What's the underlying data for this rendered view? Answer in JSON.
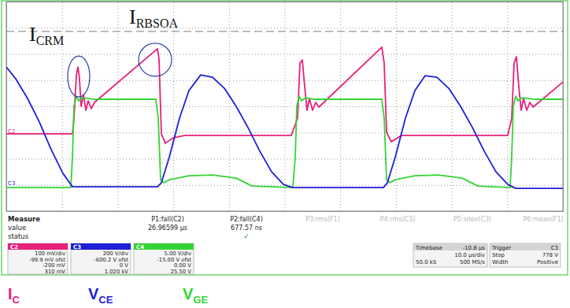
{
  "chart_data": {
    "type": "line",
    "xlim": [
      0,
      100
    ],
    "xticks": [
      0,
      10,
      20,
      30,
      40,
      50,
      60,
      70,
      80,
      90,
      100
    ],
    "ylim": [
      0,
      8
    ],
    "yticks": [
      0,
      1,
      2,
      3,
      4,
      5,
      6,
      7,
      8
    ],
    "grid": true,
    "tick_labels": false,
    "series": [
      {
        "name": "IC",
        "color": "#e8207a",
        "x": [
          0,
          11.88,
          12.16,
          12.59,
          12.87,
          13.15,
          13.44,
          13.86,
          14.29,
          14.71,
          15.28,
          15.84,
          27.16,
          27.44,
          27.86,
          28.57,
          29.99,
          32.11,
          51.2,
          52.33,
          52.76,
          53.18,
          53.61,
          54.03,
          54.46,
          55.02,
          55.59,
          56.15,
          67.47,
          67.89,
          68.32,
          69.16,
          71.0,
          90.1,
          90.8,
          91.23,
          91.65,
          92.08,
          92.5,
          92.93,
          93.5,
          94.06,
          94.63,
          100
        ],
        "values": [
          2.95,
          2.95,
          3.55,
          5.2,
          5.5,
          5.05,
          4.0,
          4.45,
          3.85,
          4.21,
          3.91,
          4.15,
          6.2,
          5.8,
          2.95,
          2.59,
          2.8,
          2.89,
          2.89,
          3.55,
          5.65,
          5.77,
          4.75,
          3.85,
          4.3,
          3.85,
          4.15,
          3.97,
          6.26,
          5.65,
          3.01,
          2.65,
          2.89,
          2.89,
          3.55,
          5.65,
          5.89,
          4.75,
          3.85,
          4.3,
          3.85,
          4.15,
          3.97,
          4.93
        ]
      },
      {
        "name": "VGE",
        "color": "#35d435",
        "x": [
          0,
          11.6,
          11.88,
          12.16,
          12.59,
          13.01,
          13.72,
          15.84,
          26.87,
          27.3,
          27.72,
          28.29,
          29.28,
          32.81,
          37.06,
          41.3,
          44.13,
          51.48,
          51.91,
          52.19,
          52.62,
          53.04,
          53.75,
          55.44,
          67.47,
          67.89,
          68.32,
          68.88,
          69.87,
          73.41,
          77.65,
          81.89,
          84.72,
          90.52,
          90.8,
          91.09,
          91.51,
          91.94,
          92.64,
          95.05,
          100
        ],
        "values": [
          0.9,
          0.9,
          2.05,
          4.0,
          4.39,
          4.21,
          4.33,
          4.27,
          4.27,
          3.55,
          1.2,
          1.08,
          1.2,
          1.35,
          1.38,
          1.26,
          0.96,
          0.9,
          2.05,
          4.0,
          4.39,
          4.21,
          4.33,
          4.27,
          4.27,
          3.55,
          1.2,
          1.08,
          1.2,
          1.35,
          1.38,
          1.26,
          0.96,
          0.9,
          2.05,
          4.0,
          4.39,
          4.21,
          4.33,
          4.27,
          4.27
        ]
      },
      {
        "name": "VCE",
        "color": "#1f1fd6",
        "x": [
          0,
          1.7,
          3.82,
          5.94,
          8.06,
          10.18,
          11.88,
          27.16,
          27.86,
          29.27,
          31.12,
          32.81,
          34.93,
          37.06,
          39.18,
          41.3,
          43.42,
          45.54,
          47.67,
          49.79,
          51.48,
          67.75,
          68.46,
          69.87,
          71.71,
          73.41,
          75.25,
          77.37,
          79.49,
          81.61,
          83.74,
          85.86,
          87.98,
          90.1,
          91.51,
          100
        ],
        "values": [
          5.5,
          5.05,
          4.3,
          3.4,
          2.35,
          1.44,
          0.93,
          0.93,
          1.08,
          2.05,
          3.55,
          4.6,
          5.2,
          5.11,
          4.69,
          4.0,
          3.19,
          2.29,
          1.5,
          1.02,
          0.9,
          0.9,
          1.08,
          2.05,
          3.55,
          4.6,
          5.17,
          5.11,
          4.69,
          4.0,
          3.19,
          2.29,
          1.5,
          1.02,
          0.87,
          0.87
        ]
      }
    ],
    "annotations": [
      {
        "label": "I",
        "subscript": "CRM",
        "x": 12.87,
        "y": 5.5
      },
      {
        "label": "I",
        "subscript": "RBSOA",
        "x": 27.16,
        "y": 6.2
      }
    ],
    "cursor_level": 6.86,
    "channel_markers": [
      {
        "label": "C2",
        "y": 2.92,
        "color": "#e8207a"
      },
      {
        "label": "C3",
        "y": 0.93,
        "color": "#1f1fd6"
      }
    ]
  },
  "scope_panel": {
    "measure_labels": [
      "Measure",
      "value",
      "status"
    ],
    "params": [
      {
        "name": "P1:fall(C2)",
        "value": "26.96599 µs"
      },
      {
        "name": "P2:fall(C4)",
        "value": "677.57 ns",
        "status": "✓"
      },
      {
        "name": "P3:rms(F1)"
      },
      {
        "name": "P4:rms(C3)"
      },
      {
        "name": "P5:sdev(C3)"
      },
      {
        "name": "P6:mean(F1)"
      }
    ],
    "channels": [
      {
        "name": "C2",
        "color": "#e8207a",
        "rows": [
          "100 mV/div",
          "-99.9 mV ofst",
          "-200 mV",
          "310 mV"
        ]
      },
      {
        "name": "C3",
        "color": "#1f1fd6",
        "rows": [
          "200 V/div",
          "-600.2 V ofst",
          "0 V",
          "1.020 kV"
        ]
      },
      {
        "name": "C4",
        "color": "#35d435",
        "rows": [
          "5.00 V/div",
          "-15.00 V ofst",
          "0.00 V",
          "25.50 V"
        ]
      }
    ],
    "boxes": [
      {
        "title": "Timebase",
        "title_value": "-10.8 µs",
        "rows": [
          [
            "10.0 µs/div"
          ],
          [
            "50.0 kS",
            "500 MS/s"
          ]
        ]
      },
      {
        "title": "Trigger",
        "title_value": "C3",
        "rows": [
          [
            "Stop",
            "778 V"
          ],
          [
            "Width",
            "Positive"
          ]
        ]
      }
    ]
  }
}
